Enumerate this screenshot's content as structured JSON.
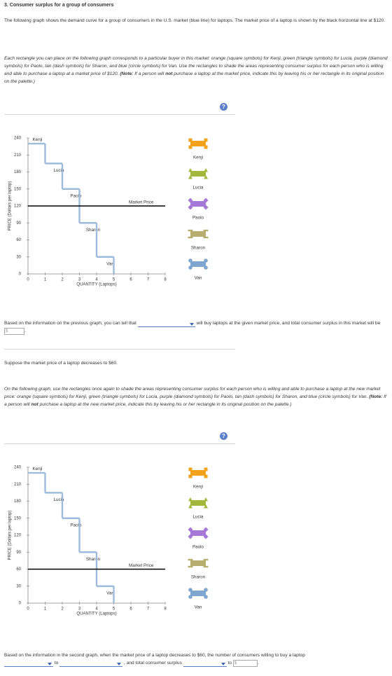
{
  "header": {
    "title": "3. Consumer surplus for a group of consumers"
  },
  "intro": "The following graph shows the demand curve for a group of consumers in the U.S. market (blue line) for laptops. The market price of a laptop is shown by the black horizontal line at $120.",
  "instructions_1": [
    "Each rectangle you can place on the following graph corresponds to a particular buyer in this market: orange (square symbols) for Kenji, green (triangle symbols) for Lucia, purple (diamond symbols) for Paolo, tan (dash symbols) for Sharon, and blue (circle symbols) for Van. Use the rectangles to shade the areas representing consumer surplus for each person who is willing and able to purchase a laptop at a market price of $120. ",
    "(Note:",
    " If a person will ",
    "not",
    " purchase a laptop at the market price, indicate this by leaving his or her rectangle in its original position on the palette.)"
  ],
  "chart_data": [
    {
      "type": "step",
      "categories": [
        "Kenji",
        "Lucia",
        "Paolo",
        "Sharon",
        "Van"
      ],
      "values": [
        230,
        195,
        150,
        90,
        30
      ],
      "color": "#9dbcdc",
      "market_price": 120,
      "market_price_label": "Market Price",
      "market_price_color": "#000000",
      "xlabel": "QUANTITY (Laptops)",
      "ylabel": "PRICE (Dollars per laptop)",
      "xlim": [
        0,
        8
      ],
      "xticks": [
        0,
        1,
        2,
        3,
        4,
        5,
        6,
        7,
        8
      ],
      "ylim": [
        0,
        240
      ],
      "yticks": [
        0,
        30,
        60,
        90,
        120,
        150,
        180,
        210,
        240
      ],
      "grid": false,
      "palette_colors": [
        "#f5a21b",
        "#a3b73a",
        "#a678d8",
        "#b7ad6f",
        "#7fa5d1"
      ],
      "palette_symbols": [
        "square",
        "triangle",
        "diamond",
        "dash",
        "circle"
      ]
    },
    {
      "type": "step",
      "categories": [
        "Kenji",
        "Lucia",
        "Paolo",
        "Sharon",
        "Van"
      ],
      "values": [
        230,
        195,
        150,
        90,
        30
      ],
      "color": "#9dbcdc",
      "market_price": 60,
      "market_price_label": "Market Price",
      "market_price_color": "#000000",
      "xlabel": "QUANTITY (Laptops)",
      "ylabel": "PRICE (Dollars per laptop)",
      "xlim": [
        0,
        8
      ],
      "xticks": [
        0,
        1,
        2,
        3,
        4,
        5,
        6,
        7,
        8
      ],
      "ylim": [
        0,
        240
      ],
      "yticks": [
        0,
        30,
        60,
        90,
        120,
        150,
        180,
        210,
        240
      ],
      "grid": false,
      "palette_colors": [
        "#f5a21b",
        "#a3b73a",
        "#a678d8",
        "#b7ad6f",
        "#7fa5d1"
      ],
      "palette_symbols": [
        "square",
        "triangle",
        "diamond",
        "dash",
        "circle"
      ]
    }
  ],
  "question_1": {
    "before": "Based on the information on the previous graph, you can tell that",
    "after": "will buy laptops at the given market price, and total consumer surplus in this market will be",
    "currency": "$",
    "end": "."
  },
  "price_change": "Suppose the market price of a laptop decreases to $60.",
  "instructions_2": [
    "On the following graph, use the rectangles once again to shade the areas representing consumer surplus for each person who is willing and able to purchase a laptop at the new market price: orange (square symbols) for Kenji, green (triangle symbols) for Lucia, purple (diamond symbols) for Paolo, tan (dash symbols) for Sharon, and blue (circle symbols) for Van. ",
    "(Note:",
    " If a person will ",
    "not",
    " purchase a laptop at the new market price, indicate this by leaving his or her rectangle in its original position on the palette.)"
  ],
  "question_2": {
    "text": "Based on the information in the second graph, when the market price of a laptop decreases to $60, the number of consumers willing to buy a laptop",
    "to_1": "to",
    "middle": ", and total consumer surplus",
    "to_2": "to",
    "currency": "$",
    "end": "."
  }
}
